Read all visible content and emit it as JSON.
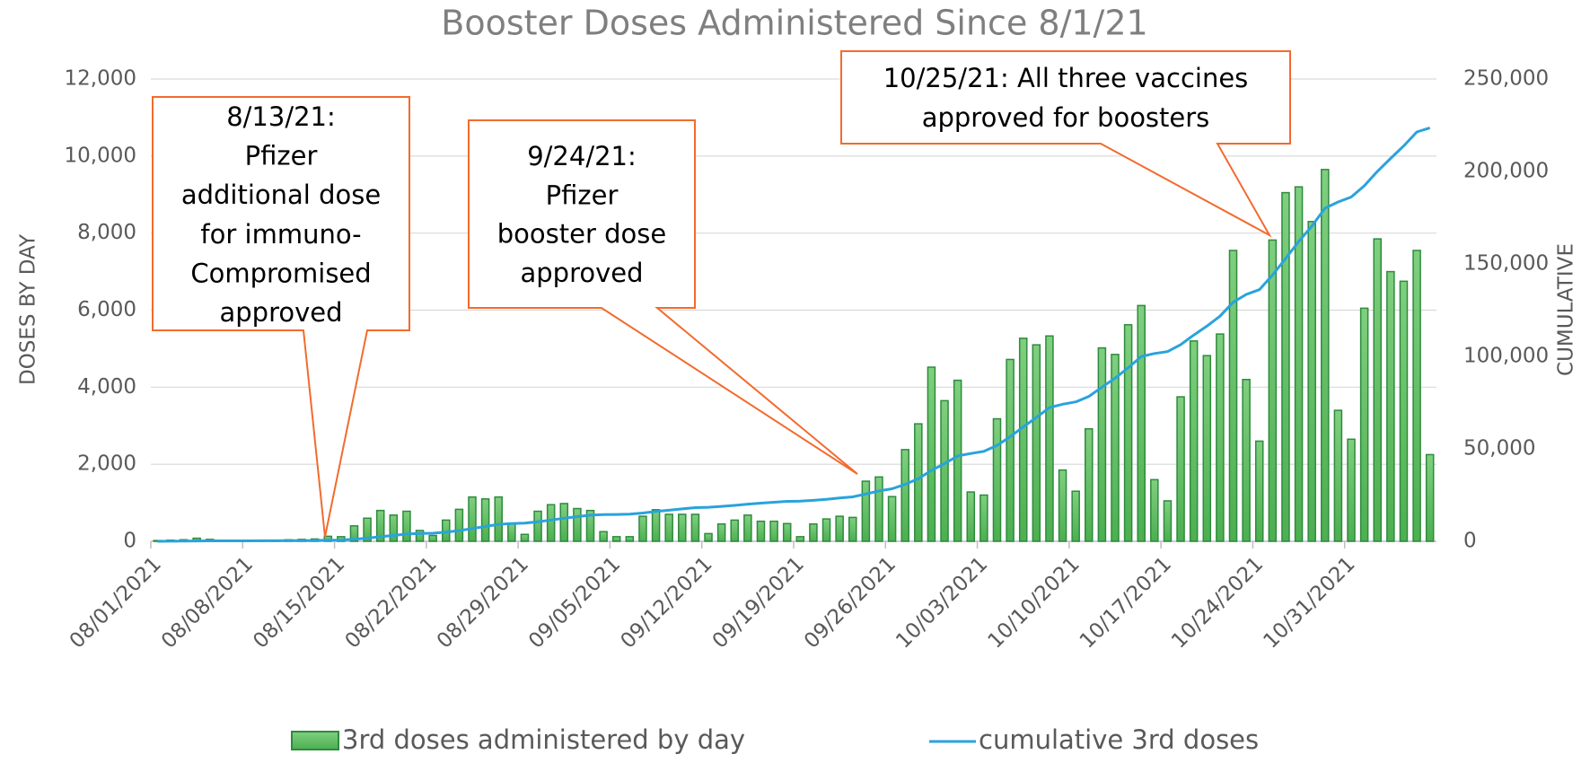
{
  "chart_data": {
    "type": "bar",
    "title": "Booster Doses Administered Since 8/1/21",
    "ylabel": "DOSES BY DAY",
    "y2label": "CUMULATIVE",
    "categories": [
      "08/01/2021",
      null,
      null,
      null,
      null,
      null,
      null,
      "08/08/2021",
      null,
      null,
      null,
      null,
      null,
      null,
      "08/15/2021",
      null,
      null,
      null,
      null,
      null,
      null,
      "08/22/2021",
      null,
      null,
      null,
      null,
      null,
      null,
      "08/29/2021",
      null,
      null,
      null,
      null,
      null,
      null,
      "09/05/2021",
      null,
      null,
      null,
      null,
      null,
      null,
      "09/12/2021",
      null,
      null,
      null,
      null,
      null,
      null,
      "09/19/2021",
      null,
      null,
      null,
      null,
      null,
      null,
      "09/26/2021",
      null,
      null,
      null,
      null,
      null,
      null,
      "10/03/2021",
      null,
      null,
      null,
      null,
      null,
      null,
      "10/10/2021",
      null,
      null,
      null,
      null,
      null,
      null,
      "10/17/2021",
      null,
      null,
      null,
      null,
      null,
      null,
      "10/24/2021",
      null,
      null,
      null,
      null,
      null,
      null,
      "10/31/2021",
      null,
      null,
      null,
      null,
      null,
      null
    ],
    "series": [
      {
        "name": "3rd doses administered by day",
        "type": "bar",
        "color": "#5cb85c",
        "stroke": "#2e8b3e",
        "values": [
          20,
          30,
          40,
          80,
          50,
          20,
          10,
          10,
          10,
          20,
          40,
          50,
          60,
          130,
          120,
          400,
          600,
          800,
          680,
          780,
          280,
          150,
          550,
          830,
          1150,
          1100,
          1150,
          450,
          180,
          780,
          950,
          980,
          850,
          800,
          250,
          120,
          120,
          650,
          820,
          700,
          700,
          700,
          200,
          450,
          550,
          680,
          520,
          520,
          460,
          120,
          450,
          580,
          650,
          620,
          1560,
          1670,
          1160,
          2380,
          3050,
          4520,
          3650,
          4180,
          1280,
          1200,
          3180,
          4720,
          5270,
          5100,
          5330,
          1850,
          1300,
          2920,
          5020,
          4850,
          5620,
          6120,
          1600,
          1050,
          3750,
          5200,
          4820,
          5380,
          7550,
          4200,
          2600,
          7820,
          9050,
          9200,
          8300,
          9650,
          3400,
          2650,
          6050,
          7850,
          7000,
          6750,
          7550,
          2250
        ]
      },
      {
        "name": "cumulative 3rd doses",
        "type": "line",
        "axis": "y2",
        "color": "#29a3dc",
        "values": [
          20,
          50,
          90,
          170,
          220,
          240,
          250,
          260,
          270,
          290,
          330,
          380,
          440,
          570,
          690,
          1090,
          1690,
          2490,
          3170,
          3950,
          4230,
          4380,
          4930,
          5760,
          6910,
          8010,
          9160,
          9610,
          9790,
          10570,
          11520,
          12500,
          13350,
          14150,
          14400,
          14520,
          14640,
          15290,
          16110,
          16810,
          17510,
          18210,
          18410,
          18860,
          19410,
          20090,
          20610,
          21130,
          21590,
          21710,
          22160,
          22740,
          23390,
          24010,
          25570,
          27240,
          28400,
          30780,
          33830,
          38350,
          42000,
          46180,
          47460,
          48660,
          51840,
          56560,
          61830,
          66930,
          72260,
          74110,
          75410,
          78330,
          83350,
          88200,
          93820,
          99940,
          101540,
          102590,
          106340,
          111540,
          116360,
          121740,
          129290,
          133490,
          136090,
          143910,
          152960,
          162160,
          170460,
          180110,
          183510,
          186160,
          192210,
          200060,
          207060,
          213810,
          221360,
          223610
        ]
      }
    ],
    "ylim": [
      0,
      12000
    ],
    "yticks": [
      0,
      {
        "value": 2000,
        "label": "2,000"
      },
      {
        "value": 4000,
        "label": "4,000"
      },
      {
        "value": 6000,
        "label": "6,000"
      },
      {
        "value": 8000,
        "label": "8,000"
      },
      {
        "value": 10000,
        "label": "10,000"
      },
      {
        "value": 12000,
        "label": "12,000"
      }
    ],
    "y2lim": [
      0,
      250000
    ],
    "y2ticks": [
      0,
      {
        "value": 50000,
        "label": "50,000"
      },
      {
        "value": 100000,
        "label": "100,000"
      },
      {
        "value": 150000,
        "label": "150,000"
      },
      {
        "value": 200000,
        "label": "200,000"
      },
      {
        "value": 250000,
        "label": "250,000"
      }
    ],
    "grid": true,
    "legend": "bottom",
    "annotations": [
      {
        "lines": [
          "8/13/21:",
          "Pfizer",
          "additional dose",
          "for immuno-",
          "Compromised",
          "approved"
        ]
      },
      {
        "lines": [
          "9/24/21:",
          "Pfizer",
          "booster dose",
          "approved"
        ]
      },
      {
        "lines": [
          "10/25/21: All three vaccines",
          "approved for boosters"
        ]
      }
    ]
  }
}
